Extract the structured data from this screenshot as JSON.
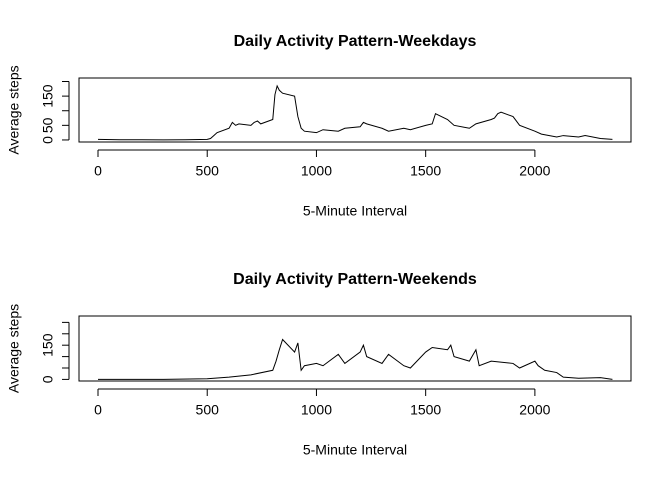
{
  "chart_data": [
    {
      "type": "line",
      "title": "Daily Activity Pattern-Weekdays",
      "xlabel": "5-Minute Interval",
      "ylabel": "Average steps",
      "color": "#000000",
      "x": [
        0,
        100,
        200,
        300,
        400,
        500,
        515,
        530,
        545,
        600,
        615,
        630,
        645,
        700,
        715,
        730,
        745,
        800,
        810,
        820,
        830,
        845,
        900,
        915,
        930,
        945,
        1000,
        1030,
        1100,
        1130,
        1200,
        1215,
        1230,
        1300,
        1330,
        1400,
        1430,
        1500,
        1530,
        1545,
        1600,
        1630,
        1700,
        1730,
        1800,
        1815,
        1830,
        1845,
        1900,
        1930,
        2000,
        2030,
        2100,
        2130,
        2200,
        2230,
        2300,
        2355
      ],
      "values": [
        2,
        0.5,
        0.5,
        0.3,
        0.5,
        2,
        5,
        15,
        25,
        40,
        60,
        50,
        55,
        50,
        60,
        65,
        55,
        70,
        155,
        185,
        170,
        160,
        150,
        80,
        40,
        30,
        25,
        35,
        30,
        40,
        45,
        60,
        55,
        40,
        30,
        40,
        35,
        50,
        55,
        90,
        70,
        50,
        40,
        55,
        70,
        75,
        90,
        95,
        80,
        50,
        30,
        20,
        10,
        15,
        10,
        15,
        5,
        2
      ],
      "xlim": [
        -87,
        2440
      ],
      "ylim": [
        -7,
        212
      ],
      "xticks": [
        0,
        500,
        1000,
        1500,
        2000
      ],
      "yticks": [
        0,
        50,
        150
      ],
      "yminor": [
        100,
        200
      ]
    },
    {
      "type": "line",
      "title": "Daily Activity Pattern-Weekends",
      "xlabel": "5-Minute Interval",
      "ylabel": "Average steps",
      "color": "#000000",
      "x": [
        0,
        300,
        500,
        600,
        700,
        800,
        815,
        830,
        845,
        900,
        915,
        930,
        945,
        1000,
        1030,
        1100,
        1130,
        1200,
        1215,
        1230,
        1300,
        1330,
        1400,
        1430,
        1500,
        1530,
        1600,
        1615,
        1630,
        1700,
        1730,
        1745,
        1800,
        1900,
        1930,
        2000,
        2015,
        2045,
        2100,
        2130,
        2200,
        2300,
        2355
      ],
      "values": [
        0,
        0,
        3,
        10,
        20,
        40,
        80,
        130,
        175,
        120,
        160,
        40,
        60,
        70,
        60,
        110,
        70,
        120,
        150,
        100,
        70,
        110,
        60,
        50,
        120,
        140,
        130,
        150,
        100,
        80,
        130,
        60,
        80,
        70,
        50,
        80,
        60,
        40,
        30,
        10,
        5,
        8,
        0
      ],
      "xlim": [
        -87,
        2440
      ],
      "ylim": [
        -7,
        278
      ],
      "xticks": [
        0,
        500,
        1000,
        1500,
        2000
      ],
      "yticks": [
        0,
        150
      ],
      "yminor": [
        50,
        100,
        200,
        250
      ]
    }
  ]
}
